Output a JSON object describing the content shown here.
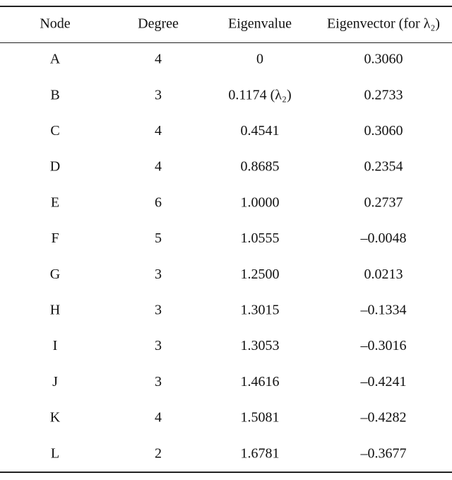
{
  "table": {
    "header": [
      "Node",
      "Degree",
      "Eigenvalue",
      "Eigenvector (for λ₂)"
    ],
    "rows": [
      [
        "A",
        "4",
        "0",
        "0.3060"
      ],
      [
        "B",
        "3",
        "0.1174 (λ₂)",
        "0.2733"
      ],
      [
        "C",
        "4",
        "0.4541",
        "0.3060"
      ],
      [
        "D",
        "4",
        "0.8685",
        "0.2354"
      ],
      [
        "E",
        "6",
        "1.0000",
        "0.2737"
      ],
      [
        "F",
        "5",
        "1.0555",
        "–0.0048"
      ],
      [
        "G",
        "3",
        "1.2500",
        "0.0213"
      ],
      [
        "H",
        "3",
        "1.3015",
        "–0.1334"
      ],
      [
        "I",
        "3",
        "1.3053",
        "–0.3016"
      ],
      [
        "J",
        "3",
        "1.4616",
        "–0.4241"
      ],
      [
        "K",
        "4",
        "1.5081",
        "–0.4282"
      ],
      [
        "L",
        "2",
        "1.6781",
        "–0.3677"
      ]
    ]
  }
}
